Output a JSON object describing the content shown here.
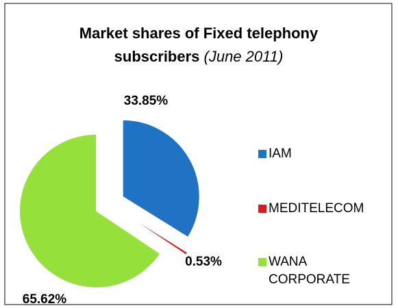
{
  "chart_data": {
    "type": "pie",
    "title": "Market shares of Fixed telephony subscribers",
    "subtitle": "(June 2011)",
    "categories": [
      "IAM",
      "MEDITELECOM",
      "WANA CORPORATE"
    ],
    "values": [
      33.85,
      0.53,
      65.62
    ],
    "value_labels": [
      "33.85%",
      "0.53%",
      "65.62%"
    ],
    "colors": [
      "#1f72c4",
      "#e0161b",
      "#96e03c"
    ],
    "legend": "right"
  }
}
